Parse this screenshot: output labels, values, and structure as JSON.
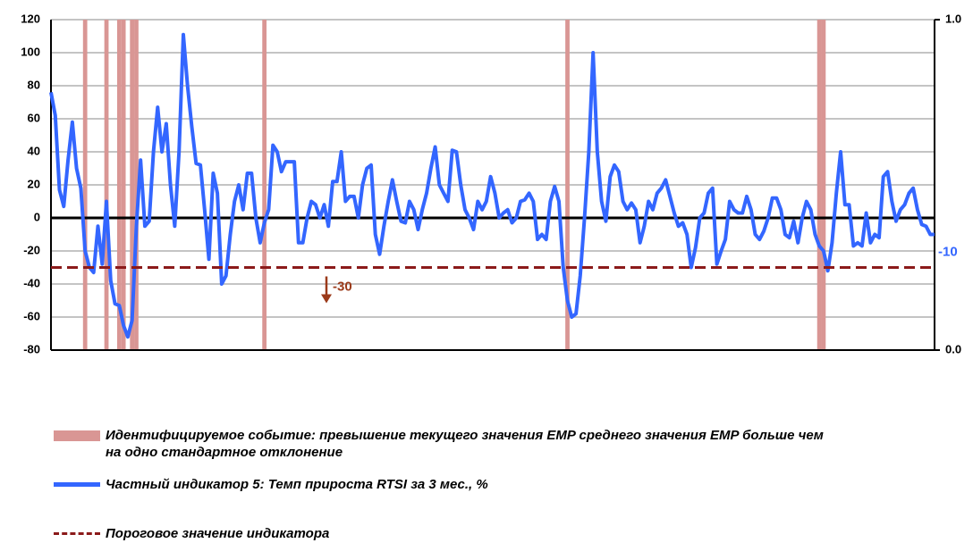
{
  "chart_data": {
    "type": "line",
    "ylim": [
      -80,
      120
    ],
    "yticks": [
      -80,
      -60,
      -40,
      -20,
      0,
      20,
      40,
      60,
      80,
      100,
      120
    ],
    "y2lim": [
      0,
      1
    ],
    "y2ticks": [
      {
        "value": 0,
        "label": "0.0"
      },
      {
        "value": 1,
        "label": "1.0"
      }
    ],
    "grid": true,
    "series": [
      {
        "name": "Идентифицируемое событие: превышение текущего значения EMP среднего значения EMP больше чем на одно стандартное отклонение",
        "type": "bar",
        "axis": "y2",
        "color": "#d99694",
        "x": [
          8,
          13,
          16,
          17,
          19,
          20,
          50,
          121,
          180,
          181
        ],
        "values": [
          1,
          1,
          1,
          1,
          1,
          1,
          1,
          1,
          1,
          1
        ]
      },
      {
        "name": "Частный индикатор 5: Темп прироста RTSI за 3 мес., %",
        "type": "line",
        "color": "#3366ff",
        "values": [
          76,
          62,
          17,
          7,
          35,
          58,
          30,
          18,
          -20,
          -30,
          -33,
          -5,
          -28,
          10,
          -38,
          -52,
          -53,
          -65,
          -72,
          -62,
          -5,
          35,
          -5,
          -2,
          40,
          67,
          40,
          57,
          20,
          -5,
          40,
          111,
          80,
          55,
          33,
          32,
          5,
          -25,
          27,
          15,
          -40,
          -35,
          -10,
          10,
          20,
          5,
          27,
          27,
          0,
          -15,
          -3,
          5,
          44,
          40,
          28,
          34,
          34,
          34,
          -15,
          -15,
          0,
          10,
          8,
          0,
          8,
          -5,
          22,
          22,
          40,
          10,
          13,
          13,
          0,
          20,
          30,
          32,
          -10,
          -22,
          -5,
          10,
          23,
          10,
          -2,
          -3,
          10,
          5,
          -7,
          5,
          15,
          30,
          43,
          20,
          15,
          10,
          41,
          40,
          20,
          5,
          0,
          -7,
          10,
          5,
          10,
          25,
          15,
          0,
          3,
          5,
          -3,
          0,
          10,
          11,
          15,
          10,
          -13,
          -10,
          -13,
          10,
          19,
          10,
          -30,
          -50,
          -60,
          -58,
          -35,
          0,
          40,
          100,
          40,
          10,
          -2,
          25,
          32,
          28,
          10,
          5,
          9,
          5,
          -15,
          -5,
          10,
          5,
          15,
          18,
          23,
          13,
          3,
          -5,
          -3,
          -10,
          -30,
          -18,
          0,
          3,
          15,
          18,
          -28,
          -20,
          -13,
          10,
          5,
          3,
          3,
          13,
          5,
          -10,
          -13,
          -8,
          0,
          12,
          12,
          5,
          -10,
          -12,
          -2,
          -15,
          0,
          10,
          5,
          -10,
          -17,
          -20,
          -32,
          -15,
          15,
          40,
          8,
          8,
          -17,
          -15,
          -17,
          3,
          -15,
          -10,
          -12,
          25,
          28,
          10,
          -2,
          5,
          8,
          15,
          18,
          5,
          -4,
          -5,
          -10,
          -10
        ]
      },
      {
        "name": "Пороговое значение индикатора",
        "type": "hline",
        "color": "#8b1a1a",
        "values": [
          -30
        ]
      }
    ]
  }
}
